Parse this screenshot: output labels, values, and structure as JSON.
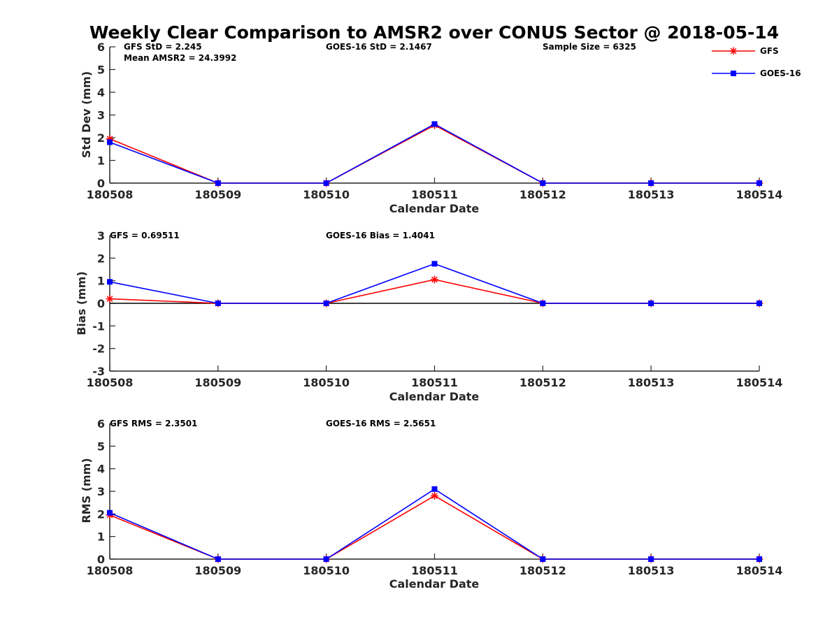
{
  "title": "Weekly Clear Comparison to AMSR2 over CONUS Sector @ 2018-05-14",
  "legend": [
    {
      "label": "GFS",
      "color": "#ff0000",
      "marker": "asterisk"
    },
    {
      "label": "GOES-16",
      "color": "#0000ff",
      "marker": "square"
    }
  ],
  "chart_data": [
    {
      "type": "line",
      "categories": [
        "180508",
        "180509",
        "180510",
        "180511",
        "180512",
        "180513",
        "180514"
      ],
      "xlabel": "Calendar Date",
      "ylabel": "Std Dev (mm)",
      "ylim": [
        0,
        6
      ],
      "yticks": [
        "0",
        "1",
        "2",
        "3",
        "4",
        "5",
        "6"
      ],
      "grid": false,
      "series": [
        {
          "name": "GFS",
          "values": [
            1.95,
            0,
            0,
            2.55,
            0,
            0,
            0
          ]
        },
        {
          "name": "GOES-16",
          "values": [
            1.8,
            0,
            0,
            2.6,
            0,
            0,
            0
          ]
        }
      ],
      "stats": {
        "gfs": "GFS StD = 2.245",
        "goes": "GOES-16 StD = 2.1467",
        "sample": "Sample Size = 6325",
        "mean": "Mean AMSR2 = 24.3992"
      }
    },
    {
      "type": "line",
      "categories": [
        "180508",
        "180509",
        "180510",
        "180511",
        "180512",
        "180513",
        "180514"
      ],
      "xlabel": "Calendar Date",
      "ylabel": "Bias (mm)",
      "ylim": [
        -3,
        3
      ],
      "yticks": [
        "-3",
        "-2",
        "-1",
        "0",
        "1",
        "2",
        "3"
      ],
      "grid": false,
      "zero_line": true,
      "series": [
        {
          "name": "GFS",
          "values": [
            0.2,
            0,
            0,
            1.05,
            0,
            0,
            0
          ]
        },
        {
          "name": "GOES-16",
          "values": [
            0.95,
            0,
            0,
            1.75,
            0,
            0,
            0
          ]
        }
      ],
      "stats": {
        "gfs": "GFS = 0.69511",
        "goes": "GOES-16 Bias  = 1.4041"
      }
    },
    {
      "type": "line",
      "categories": [
        "180508",
        "180509",
        "180510",
        "180511",
        "180512",
        "180513",
        "180514"
      ],
      "xlabel": "Calendar Date",
      "ylabel": "RMS (mm)",
      "ylim": [
        0,
        6
      ],
      "yticks": [
        "0",
        "1",
        "2",
        "3",
        "4",
        "5",
        "6"
      ],
      "grid": false,
      "series": [
        {
          "name": "GFS",
          "values": [
            1.95,
            0,
            0,
            2.8,
            0,
            0,
            0
          ]
        },
        {
          "name": "GOES-16",
          "values": [
            2.05,
            0,
            0,
            3.1,
            0,
            0,
            0
          ]
        }
      ],
      "stats": {
        "gfs": "GFS RMS = 2.3501",
        "goes": "GOES-16 RMS = 2.5651"
      }
    }
  ]
}
